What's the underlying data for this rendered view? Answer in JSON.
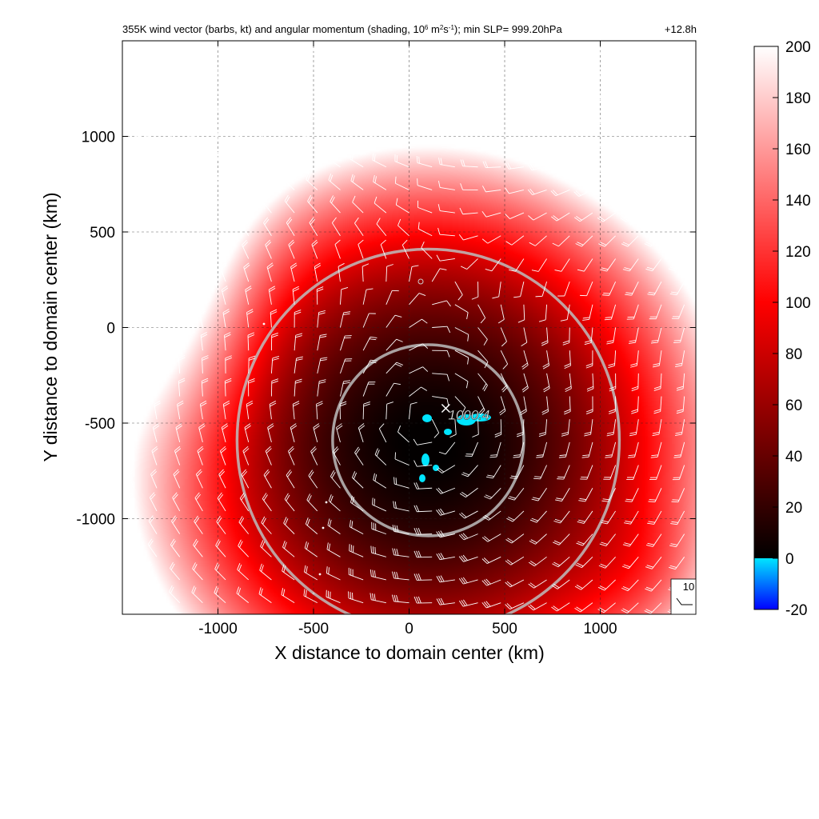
{
  "chart_data": {
    "type": "heatmap",
    "title": "355K wind vector (barbs, kt) and angular momentum (shading, 10^6 m^2s^-1); min SLP= 999.20hPa",
    "title_parts": {
      "prefix": "355K wind vector (barbs, kt) and angular momentum (shading, 10",
      "exp1": "6",
      "mid1": " m",
      "exp2": "2",
      "mid2": "s",
      "exp3": "-1",
      "suffix": "); min SLP= 999.20hPa"
    },
    "time_label": "+12.8h",
    "xlabel": "X distance to domain center (km)",
    "ylabel": "Y distance to domain center (km)",
    "xlim": [
      -1500,
      1500
    ],
    "ylim": [
      -1500,
      1500
    ],
    "x_ticks": [
      -1000,
      -500,
      0,
      500,
      1000
    ],
    "x_tick_labels": [
      "-1000",
      "-500",
      "0",
      "500",
      "1000"
    ],
    "y_ticks": [
      1000,
      500,
      0,
      -500,
      -1000
    ],
    "y_tick_labels": [
      "1000",
      "500",
      "0",
      "-500",
      "-1000"
    ],
    "grid": true,
    "colorbar": {
      "range": [
        -20,
        200
      ],
      "ticks": [
        200,
        180,
        160,
        140,
        120,
        100,
        80,
        60,
        40,
        20,
        0,
        -20
      ],
      "tick_labels": [
        "200",
        "180",
        "160",
        "140",
        "120",
        "100",
        "80",
        "60",
        "40",
        "20",
        "0",
        "-20"
      ],
      "placement": "right",
      "colors": {
        "neg_low": "#0000ff",
        "neg_high": "#00e5ff",
        "zero": "#000000",
        "mid": "#ff0000",
        "top": "#ffffff"
      }
    },
    "center": {
      "x": 100,
      "y": -590
    },
    "range_rings_km": [
      500,
      1000
    ],
    "slp_label": {
      "text": "1000.4",
      "x": 100,
      "y": -590
    },
    "reference_barb": {
      "label": "10",
      "units": "kt",
      "placement": "bottom-right"
    },
    "barb_grid": {
      "start_km": -1440,
      "step_km": 120,
      "count": 25
    }
  }
}
